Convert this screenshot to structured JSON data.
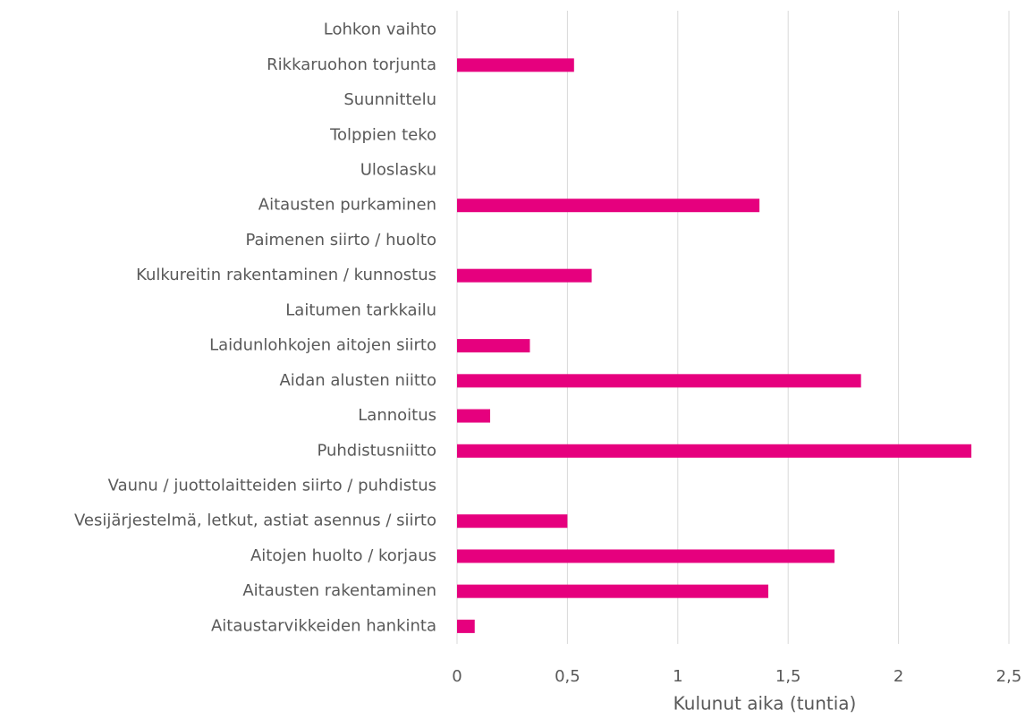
{
  "chart_data": {
    "type": "barh",
    "xlabel": "Kulunut aika (tuntia)",
    "categories": [
      "Lohkon vaihto",
      "Rikkaruohon torjunta",
      "Suunnittelu",
      "Tolppien teko",
      "Uloslasku",
      "Aitausten purkaminen",
      "Paimenen siirto / huolto",
      "Kulkureitin rakentaminen / kunnostus",
      "Laitumen tarkkailu",
      "Laidunlohkojen aitojen siirto",
      "Aidan alusten niitto",
      "Lannoitus",
      "Puhdistusniitto",
      "Vaunu / juottolaitteiden siirto / puhdistus",
      "Vesijärjestelmä, letkut, astiat asennus / siirto",
      "Aitojen huolto / korjaus",
      "Aitausten rakentaminen",
      "Aitaustarvikkeiden hankinta"
    ],
    "values": [
      0,
      0.53,
      0,
      0,
      0,
      1.37,
      0,
      0.61,
      0,
      0.33,
      1.83,
      0.15,
      2.33,
      0,
      0.5,
      1.71,
      1.41,
      0.08
    ],
    "color": "#e6007e",
    "xlim": [
      0,
      2.5
    ],
    "xticks": [
      0,
      {
        "value": 0.5,
        "label": "0,5"
      },
      1,
      {
        "value": 1.5,
        "label": "1,5"
      },
      2,
      {
        "value": 2.5,
        "label": "2,5"
      }
    ],
    "grid": true
  }
}
